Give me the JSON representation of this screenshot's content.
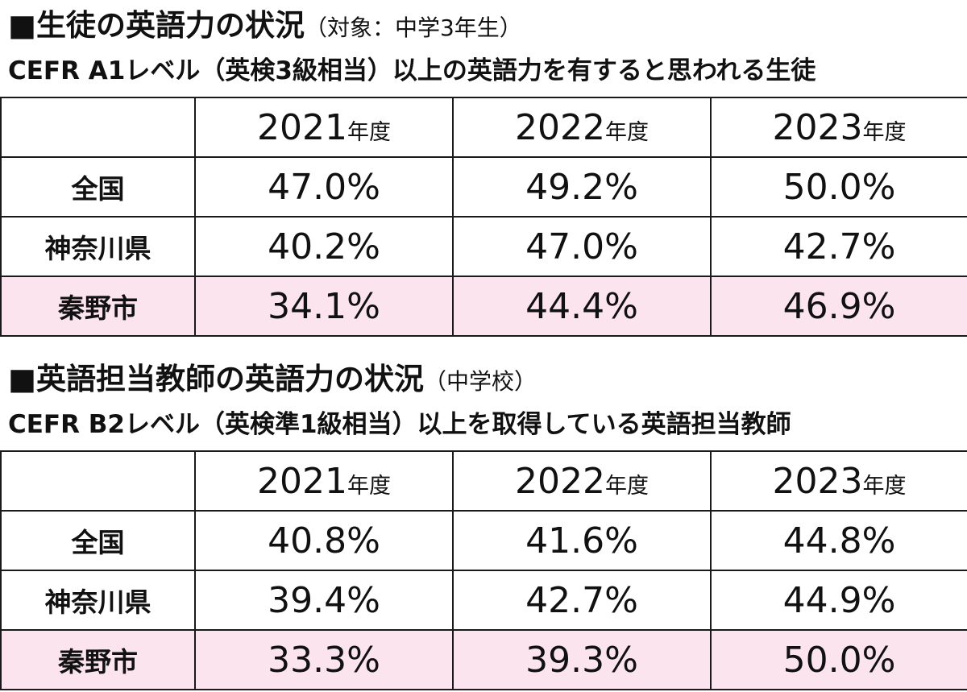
{
  "chart_data": [
    {
      "type": "table",
      "title_main": "■生徒の英語力の状況",
      "title_sub": "（対象：中学3年生）",
      "subtitle": "CEFR A1レベル（英検3級相当）以上の英語力を有すると思われる生徒",
      "year_suffix": "年度",
      "columns": [
        "2021",
        "2022",
        "2023"
      ],
      "rows": [
        {
          "name": "全国",
          "values": [
            "47.0%",
            "49.2%",
            "50.0%"
          ],
          "highlight": false
        },
        {
          "name": "神奈川県",
          "values": [
            "40.2%",
            "47.0%",
            "42.7%"
          ],
          "highlight": false
        },
        {
          "name": "秦野市",
          "values": [
            "34.1%",
            "44.4%",
            "46.9%"
          ],
          "highlight": true
        }
      ]
    },
    {
      "type": "table",
      "title_main": "■英語担当教師の英語力の状況",
      "title_sub": "（中学校）",
      "subtitle": "CEFR B2レベル（英検準1級相当）以上を取得している英語担当教師",
      "year_suffix": "年度",
      "columns": [
        "2021",
        "2022",
        "2023"
      ],
      "rows": [
        {
          "name": "全国",
          "values": [
            "40.8%",
            "41.6%",
            "44.8%"
          ],
          "highlight": false
        },
        {
          "name": "神奈川県",
          "values": [
            "39.4%",
            "42.7%",
            "44.9%"
          ],
          "highlight": false
        },
        {
          "name": "秦野市",
          "values": [
            "33.3%",
            "39.3%",
            "50.0%"
          ],
          "highlight": true
        }
      ]
    }
  ],
  "colors": {
    "highlight_row": "#fbe4ee",
    "border": "#1a1a1a",
    "text": "#111111"
  }
}
